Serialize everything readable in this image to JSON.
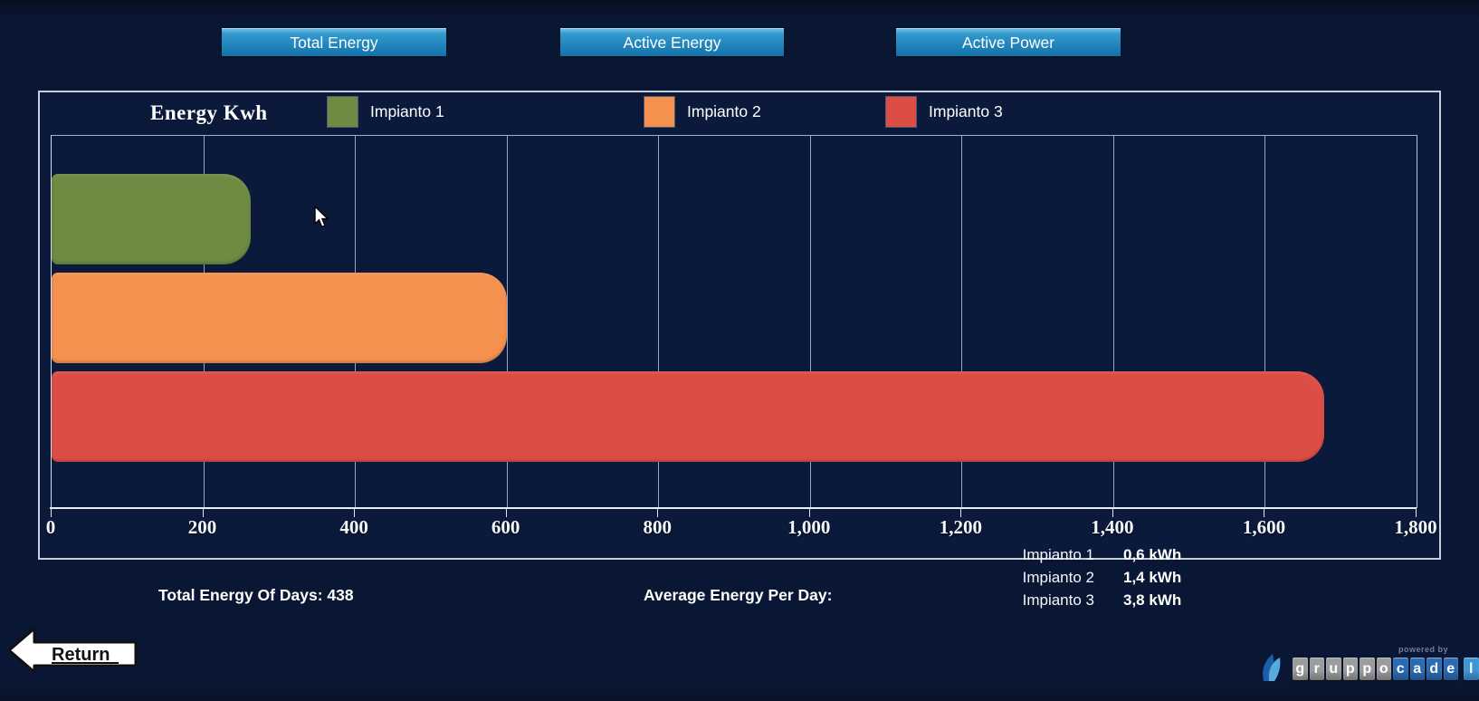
{
  "nav_buttons": [
    {
      "label": "Total Energy"
    },
    {
      "label": "Active Energy"
    },
    {
      "label": "Active Power"
    }
  ],
  "chart": {
    "title": "Energy Kwh",
    "legend": [
      {
        "label": "Impianto 1",
        "color": "#6d8b42"
      },
      {
        "label": "Impianto 2",
        "color": "#f4914e"
      },
      {
        "label": "Impianto 3",
        "color": "#dc4e45"
      }
    ]
  },
  "chart_data": {
    "type": "bar",
    "orientation": "horizontal",
    "title": "Energy Kwh",
    "categories": [
      "Impianto 1",
      "Impianto 2",
      "Impianto 3"
    ],
    "values": [
      263,
      600,
      1678
    ],
    "colors": [
      "#6d8b42",
      "#f4914e",
      "#dc4e45"
    ],
    "xlim": [
      0,
      1800
    ],
    "tick_step": 200,
    "tick_labels": [
      "0",
      "200",
      "400",
      "600",
      "800",
      "1,000",
      "1,200",
      "1,400",
      "1,600",
      "1,800"
    ],
    "grid": true,
    "legend_position": "top"
  },
  "footer": {
    "total_energy_label": "Total Energy Of Days: 438",
    "average_label": "Average Energy Per Day:",
    "averages": [
      {
        "name": "Impianto 1",
        "value": "0,6 kWh"
      },
      {
        "name": "Impianto 2",
        "value": "1,4 kWh"
      },
      {
        "name": "Impianto 3",
        "value": "3,8 kWh"
      }
    ]
  },
  "return_button": {
    "label": "Return"
  },
  "branding": {
    "powered_by": "powered by",
    "tiles": [
      {
        "ch": "g",
        "color": "#9c9c9c"
      },
      {
        "ch": "r",
        "color": "#9c9c9c"
      },
      {
        "ch": "u",
        "color": "#9c9c9c"
      },
      {
        "ch": "p",
        "color": "#9c9c9c"
      },
      {
        "ch": "p",
        "color": "#9c9c9c"
      },
      {
        "ch": "o",
        "color": "#9c9c9c"
      },
      {
        "ch": "c",
        "color": "#2a6cb4"
      },
      {
        "ch": "a",
        "color": "#2a6cb4"
      },
      {
        "ch": "d",
        "color": "#2a6cb4"
      },
      {
        "ch": "e",
        "color": "#2a6cb4"
      },
      {
        "ch": "l",
        "color": "#3e96d6"
      }
    ]
  }
}
